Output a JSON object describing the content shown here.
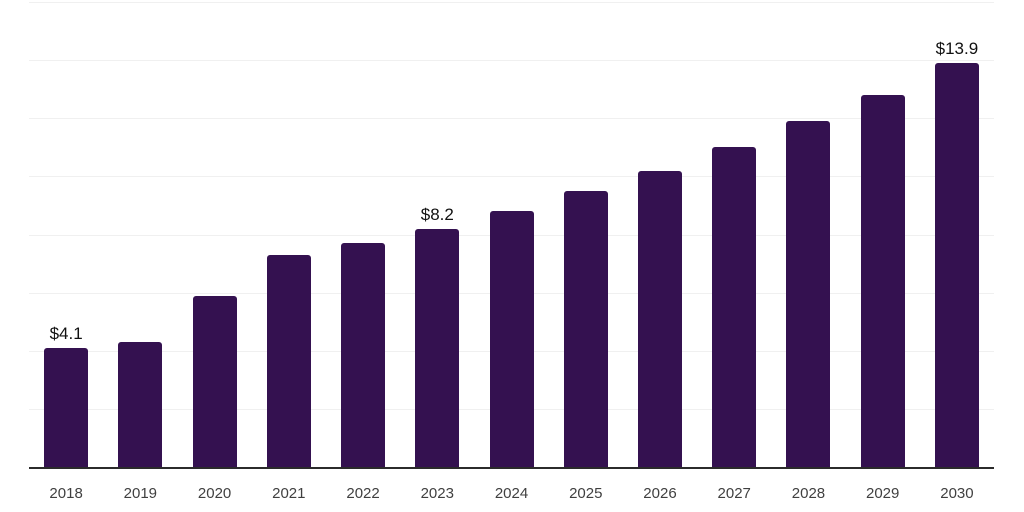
{
  "chart_data": {
    "type": "bar",
    "title": "",
    "xlabel": "",
    "ylabel": "",
    "categories": [
      "2018",
      "2019",
      "2020",
      "2021",
      "2022",
      "2023",
      "2024",
      "2025",
      "2026",
      "2027",
      "2028",
      "2029",
      "2030"
    ],
    "values": [
      4.1,
      4.3,
      5.9,
      7.3,
      7.7,
      8.2,
      8.8,
      9.5,
      10.2,
      11.0,
      11.9,
      12.8,
      13.9
    ],
    "data_labels": [
      "$4.1",
      "",
      "",
      "",
      "",
      "$8.2",
      "",
      "",
      "",
      "",
      "",
      "",
      "$13.9"
    ],
    "ylim": [
      0,
      16
    ],
    "grid_step": 2,
    "grid": true,
    "legend": false,
    "y_axis_tick_labels_visible": false,
    "colors": {
      "bar": "#341150",
      "axis_line": "#2b2b2b",
      "gridline": "#f0f0f0",
      "tick_label": "#404040",
      "data_label": "#111111",
      "background": "#ffffff"
    }
  }
}
